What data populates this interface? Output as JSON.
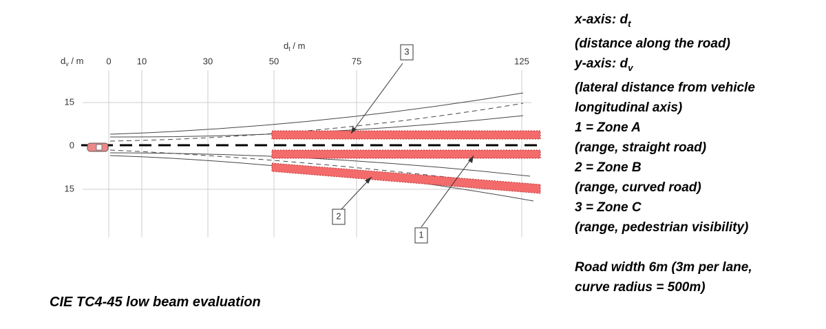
{
  "diagram": {
    "y_axis_label": {
      "symbol": "d",
      "subscript": "v",
      "unit": " / m"
    },
    "x_axis_label": {
      "symbol": "d",
      "subscript": "t",
      "unit": " / m"
    },
    "xticks": [
      0,
      10,
      30,
      50,
      75,
      125
    ],
    "yticks": [
      15,
      0,
      {
        "value": -15,
        "label": "15"
      }
    ],
    "zones": [
      {
        "label": "3"
      },
      {
        "label": "2"
      },
      {
        "label": "1"
      }
    ]
  },
  "legend": {
    "lines": [
      {
        "text": "x-axis: d",
        "subscript": "t"
      },
      {
        "text": "(distance along the road)"
      },
      {
        "text": "y-axis: d",
        "subscript": "v"
      },
      {
        "text": "(lateral distance from vehicle"
      },
      {
        "text": "longitudinal axis)"
      },
      {
        "text": "1 = Zone A"
      },
      {
        "text": "(range, straight road)"
      },
      {
        "text": "2 = Zone B"
      },
      {
        "text": "(range, curved road)"
      },
      {
        "text": "3 = Zone C"
      },
      {
        "text": "(range, pedestrian visibility)"
      }
    ],
    "note": [
      "Road width 6m (3m per lane,",
      "curve radius = 500m)"
    ]
  },
  "caption": "CIE TC4-45 low beam evaluation"
}
